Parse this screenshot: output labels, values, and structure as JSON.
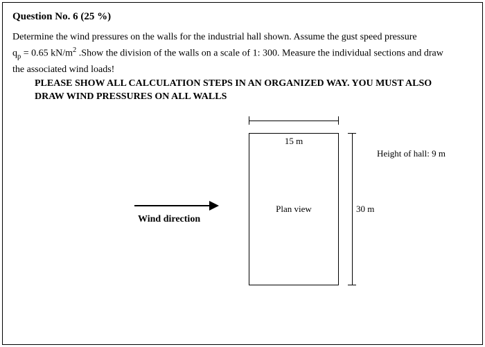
{
  "question": {
    "title": "Question No. 6 (25 %)",
    "paragraph_line1": "Determine the wind pressures on the walls for the industrial hall shown. Assume the gust speed pressure",
    "paragraph_line2_prefix": "q",
    "paragraph_line2_sub": "p",
    "paragraph_line2_mid": " = 0.65 kN/m",
    "paragraph_line2_sup": "2",
    "paragraph_line2_rest": " .Show the division of the walls on a scale of 1: 300. Measure the individual sections and draw",
    "paragraph_line3": "the associated wind loads!",
    "bold_line1": "PLEASE SHOW ALL CALCULATION STEPS IN AN ORGANIZED WAY. YOU MUST ALSO",
    "bold_line2": "DRAW WIND PRESSURES ON ALL WALLS"
  },
  "diagram": {
    "plan_label": "Plan view",
    "width_label": "15 m",
    "length_label": "30 m",
    "height_label": "Height of hall: 9 m",
    "wind_label": "Wind direction",
    "arrow_color": "#000000",
    "border_color": "#000000",
    "background": "#ffffff"
  }
}
